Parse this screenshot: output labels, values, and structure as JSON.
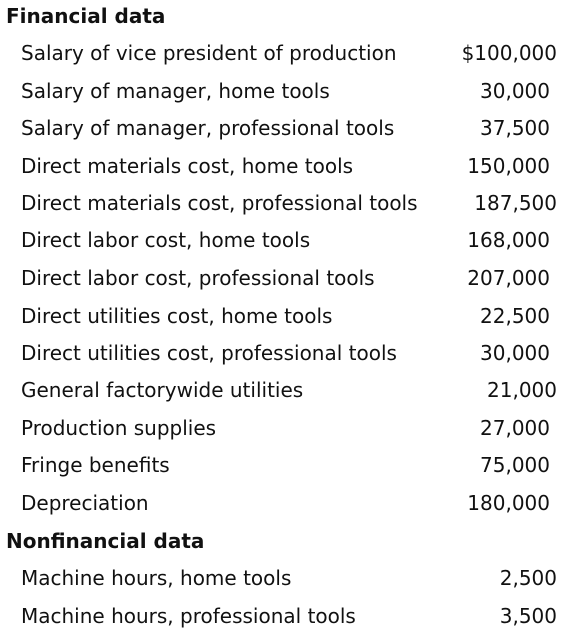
{
  "financial": {
    "title": "Financial data",
    "rows": [
      {
        "label": "Salary of vice president of production",
        "value": "$100,000"
      },
      {
        "label": "Salary of manager, home tools",
        "value": "30,000"
      },
      {
        "label": "Salary of manager, professional tools",
        "value": "37,500"
      },
      {
        "label": "Direct materials cost, home tools",
        "value": "150,000"
      },
      {
        "label": "Direct materials cost, professional tools",
        "value": "187,500"
      },
      {
        "label": "Direct labor cost, home tools",
        "value": "168,000"
      },
      {
        "label": "Direct labor cost, professional tools",
        "value": "207,000"
      },
      {
        "label": "Direct utilities cost, home tools",
        "value": "22,500"
      },
      {
        "label": "Direct utilities cost, professional tools",
        "value": "30,000"
      },
      {
        "label": "General factorywide utilities",
        "value": "21,000"
      },
      {
        "label": "Production supplies",
        "value": "27,000"
      },
      {
        "label": "Fringe benefits",
        "value": "75,000"
      },
      {
        "label": "Depreciation",
        "value": "180,000"
      }
    ]
  },
  "nonfinancial": {
    "title": "Nonfinancial data",
    "rows": [
      {
        "label": "Machine hours, home tools",
        "value": "2,500"
      },
      {
        "label": "Machine hours, professional tools",
        "value": "3,500"
      }
    ]
  }
}
